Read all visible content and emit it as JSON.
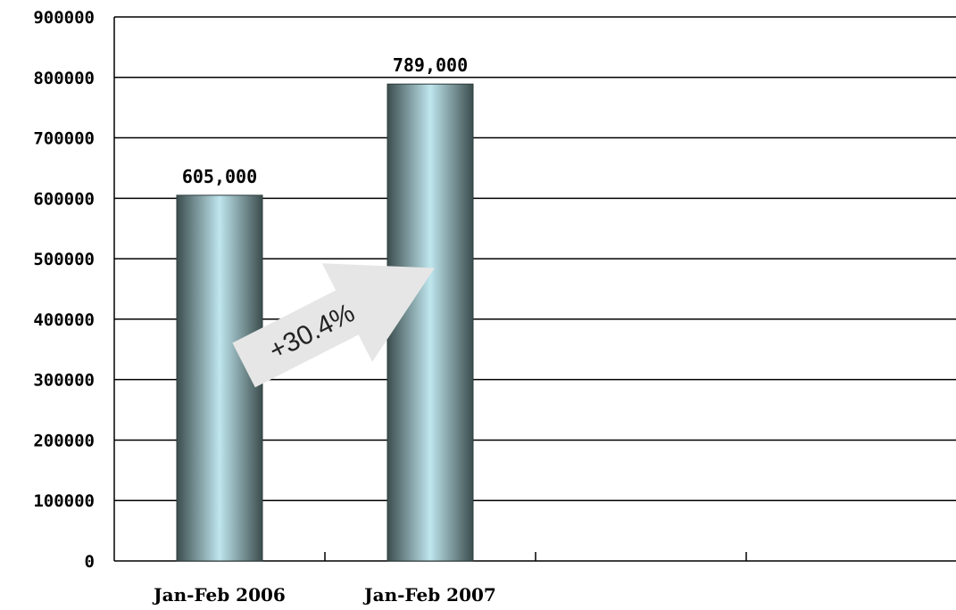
{
  "chart_data": {
    "type": "bar",
    "categories": [
      "Jan-Feb 2006",
      "Jan-Feb 2007"
    ],
    "values": [
      605000,
      789000
    ],
    "data_labels": [
      "605,000",
      "789,000"
    ],
    "y_ticks": [
      "0",
      "100000",
      "200000",
      "300000",
      "400000",
      "500000",
      "600000",
      "700000",
      "800000",
      "900000"
    ],
    "ylim": [
      0,
      900000
    ],
    "category_slots": 4,
    "grid": true,
    "legend": "none",
    "annotation": "+30.4%",
    "colors": {
      "bar_edge": "#3c4d4d",
      "bar_center": "#bfe6ee",
      "arrow": "#e6e6e6",
      "grid": "#000000"
    }
  }
}
